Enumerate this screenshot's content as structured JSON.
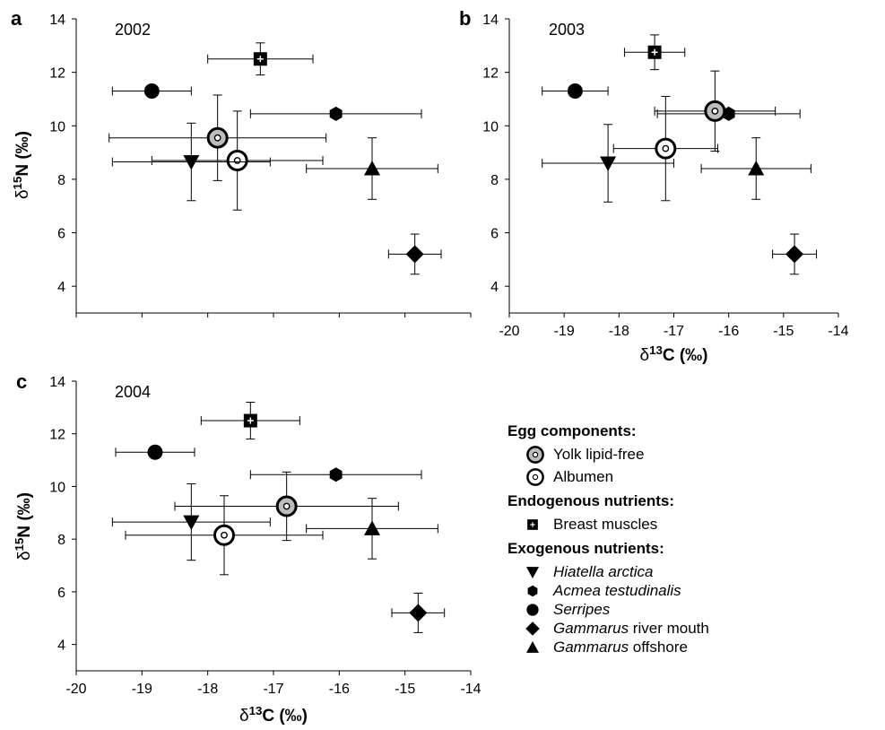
{
  "chart_data": [
    {
      "panel": "a",
      "year": "2002",
      "type": "scatter",
      "xlim": [
        -20,
        -14
      ],
      "ylim": [
        3,
        14
      ],
      "x_ticks": [],
      "y_ticks": [
        "4",
        "6",
        "8",
        "10",
        "12",
        "14"
      ],
      "xlabel": "",
      "ylabel": "δ15N (‰)",
      "points": [
        {
          "id": "breast",
          "x": -17.2,
          "y": 12.5,
          "xerr": 0.8,
          "yerr": 0.6
        },
        {
          "id": "serripes",
          "x": -18.85,
          "y": 11.3,
          "xerr": 0.6,
          "yerr": 0
        },
        {
          "id": "acmea",
          "x": -16.05,
          "y": 10.45,
          "xerr": 1.3,
          "yerr": 0
        },
        {
          "id": "yolk",
          "x": -17.85,
          "y": 9.55,
          "xerr": 1.65,
          "yerr": 1.6
        },
        {
          "id": "albumen",
          "x": -17.55,
          "y": 8.7,
          "xerr": 1.3,
          "yerr": 1.85
        },
        {
          "id": "hiatella",
          "x": -18.25,
          "y": 8.65,
          "xerr": 1.2,
          "yerr": 1.45
        },
        {
          "id": "gamm_off",
          "x": -15.5,
          "y": 8.4,
          "xerr": 1.0,
          "yerr": 1.15
        },
        {
          "id": "gamm_river",
          "x": -14.85,
          "y": 5.2,
          "xerr": 0.4,
          "yerr": 0.75
        }
      ]
    },
    {
      "panel": "b",
      "year": "2003",
      "type": "scatter",
      "xlim": [
        -20,
        -14
      ],
      "ylim": [
        3,
        14
      ],
      "x_ticks": [
        "-20",
        "-19",
        "-18",
        "-17",
        "-16",
        "-15",
        "-14"
      ],
      "y_ticks": [
        "4",
        "6",
        "8",
        "10",
        "12",
        "14"
      ],
      "xlabel": "δ13C  (‰)",
      "ylabel": "",
      "points": [
        {
          "id": "breast",
          "x": -17.35,
          "y": 12.75,
          "xerr": 0.55,
          "yerr": 0.65
        },
        {
          "id": "serripes",
          "x": -18.8,
          "y": 11.3,
          "xerr": 0.6,
          "yerr": 0
        },
        {
          "id": "acmea",
          "x": -16.0,
          "y": 10.45,
          "xerr": 1.3,
          "yerr": 0
        },
        {
          "id": "yolk",
          "x": -16.25,
          "y": 10.55,
          "xerr": 1.1,
          "yerr": 1.5
        },
        {
          "id": "albumen",
          "x": -17.15,
          "y": 9.15,
          "xerr": 0.95,
          "yerr": 1.95
        },
        {
          "id": "hiatella",
          "x": -18.2,
          "y": 8.6,
          "xerr": 1.2,
          "yerr": 1.45
        },
        {
          "id": "gamm_off",
          "x": -15.5,
          "y": 8.4,
          "xerr": 1.0,
          "yerr": 1.15
        },
        {
          "id": "gamm_river",
          "x": -14.8,
          "y": 5.2,
          "xerr": 0.4,
          "yerr": 0.75
        }
      ]
    },
    {
      "panel": "c",
      "year": "2004",
      "type": "scatter",
      "xlim": [
        -20,
        -14
      ],
      "ylim": [
        3,
        14
      ],
      "x_ticks": [
        "-20",
        "-19",
        "-18",
        "-17",
        "-16",
        "-15",
        "-14"
      ],
      "y_ticks": [
        "4",
        "6",
        "8",
        "10",
        "12",
        "14"
      ],
      "xlabel": "δ13C (‰)",
      "ylabel": "δ15N (‰)",
      "points": [
        {
          "id": "breast",
          "x": -17.35,
          "y": 12.5,
          "xerr": 0.75,
          "yerr": 0.7
        },
        {
          "id": "serripes",
          "x": -18.8,
          "y": 11.3,
          "xerr": 0.6,
          "yerr": 0
        },
        {
          "id": "acmea",
          "x": -16.05,
          "y": 10.45,
          "xerr": 1.3,
          "yerr": 0
        },
        {
          "id": "yolk",
          "x": -16.8,
          "y": 9.25,
          "xerr": 1.7,
          "yerr": 1.3
        },
        {
          "id": "albumen",
          "x": -17.75,
          "y": 8.15,
          "xerr": 1.5,
          "yerr": 1.5
        },
        {
          "id": "hiatella",
          "x": -18.25,
          "y": 8.65,
          "xerr": 1.2,
          "yerr": 1.45
        },
        {
          "id": "gamm_off",
          "x": -15.5,
          "y": 8.4,
          "xerr": 1.0,
          "yerr": 1.15
        },
        {
          "id": "gamm_river",
          "x": -14.8,
          "y": 5.2,
          "xerr": 0.4,
          "yerr": 0.75
        }
      ]
    }
  ],
  "legend": {
    "groups": [
      {
        "heading": "Egg components:",
        "items": [
          {
            "id": "yolk",
            "label": "Yolk lipid-free",
            "italic_prefix": ""
          },
          {
            "id": "albumen",
            "label": "Albumen",
            "italic_prefix": ""
          }
        ]
      },
      {
        "heading": "Endogenous nutrients:",
        "items": [
          {
            "id": "breast",
            "label": "Breast muscles",
            "italic_prefix": ""
          }
        ]
      },
      {
        "heading": "Exogenous  nutrients:",
        "items": [
          {
            "id": "hiatella",
            "label": "Hiatella arctica",
            "italic_prefix": "Hiatella arctica"
          },
          {
            "id": "acmea",
            "label": "Acmea testudinalis",
            "italic_prefix": "Acmea testudinalis"
          },
          {
            "id": "serripes",
            "label": "Serripes",
            "italic_prefix": "Serripes"
          },
          {
            "id": "gamm_river",
            "label": "Gammarus river mouth",
            "italic_prefix": "Gammarus"
          },
          {
            "id": "gamm_off",
            "label": "Gammarus offshore",
            "italic_prefix": "Gammarus"
          }
        ]
      }
    ]
  },
  "marker_icons": {
    "yolk": "grey-ring-circle-icon",
    "albumen": "white-ring-circle-icon",
    "breast": "square-cross-icon",
    "hiatella": "down-triangle-icon",
    "acmea": "hexagon-icon",
    "serripes": "filled-circle-icon",
    "gamm_river": "diamond-icon",
    "gamm_off": "up-triangle-icon"
  },
  "colors": {
    "ink": "#000000",
    "yolk_fill": "#bdbdbd",
    "background": "#ffffff"
  }
}
